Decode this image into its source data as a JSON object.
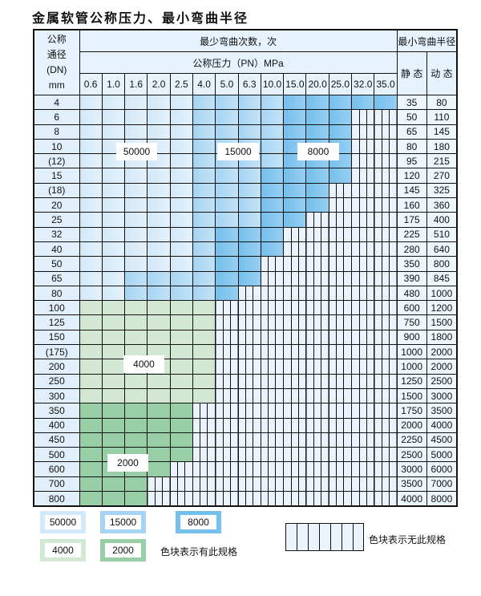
{
  "title": "金属软管公称压力、最小弯曲半径",
  "header": {
    "dn_label": "公称\n通径\n(DN)\nmm",
    "cycles_label": "最少弯曲次数，次",
    "pressure_label": "公称压力（PN）MPa",
    "radius_label": "最小弯曲半径",
    "static_label": "静 态",
    "dynamic_label": "动 态",
    "pressures": [
      "0.6",
      "1.0",
      "1.6",
      "2.0",
      "2.5",
      "4.0",
      "5.0",
      "6.3",
      "10.0",
      "15.0",
      "20.0",
      "25.0",
      "32.0",
      "35.0"
    ]
  },
  "category_colors": {
    "L": "#d3e8f8",
    "M": "#a6d4f2",
    "D": "#74bfec",
    "G": "#d2e8d3",
    "H": "#98cea6",
    "X": "#eaf3fb"
  },
  "category_values": {
    "L": "50000",
    "M": "15000",
    "D": "8000",
    "G": "4000",
    "H": "2000"
  },
  "rows": [
    {
      "dn": "4",
      "static": "35",
      "dynamic": "80",
      "cells": "LLLLLMMMMDDDDD"
    },
    {
      "dn": "6",
      "static": "50",
      "dynamic": "110",
      "cells": "LLLLLMMMMDDDXX"
    },
    {
      "dn": "8",
      "static": "65",
      "dynamic": "145",
      "cells": "LLLLLMMMMDDDXX"
    },
    {
      "dn": "10",
      "static": "80",
      "dynamic": "180",
      "cells": "LLLLLMMMMDDDXX"
    },
    {
      "dn": "(12)",
      "static": "95",
      "dynamic": "215",
      "cells": "LLLLLMMMMDDDXX"
    },
    {
      "dn": "15",
      "static": "120",
      "dynamic": "270",
      "cells": "LLLLLMMMDDDDXX"
    },
    {
      "dn": "(18)",
      "static": "145",
      "dynamic": "325",
      "cells": "LLLLLMMMDDDXXX"
    },
    {
      "dn": "20",
      "static": "160",
      "dynamic": "360",
      "cells": "LLLLLMMMDDDXXX"
    },
    {
      "dn": "25",
      "static": "175",
      "dynamic": "400",
      "cells": "LLLLLMMMDDXXXX"
    },
    {
      "dn": "32",
      "static": "225",
      "dynamic": "510",
      "cells": "LLLLLMDDDXXXXX"
    },
    {
      "dn": "40",
      "static": "280",
      "dynamic": "640",
      "cells": "LLLLLMDDDXXXXX"
    },
    {
      "dn": "50",
      "static": "350",
      "dynamic": "800",
      "cells": "LLLLLMDDXXXXXX"
    },
    {
      "dn": "65",
      "static": "390",
      "dynamic": "845",
      "cells": "LLMMMMDDXXXXXX"
    },
    {
      "dn": "80",
      "static": "480",
      "dynamic": "1000",
      "cells": "LLMMMMDXXXXXXX"
    },
    {
      "dn": "100",
      "static": "600",
      "dynamic": "1200",
      "cells": "GGGGGGXXXXXXXX"
    },
    {
      "dn": "125",
      "static": "750",
      "dynamic": "1500",
      "cells": "GGGGGGXXXXXXXX"
    },
    {
      "dn": "150",
      "static": "900",
      "dynamic": "1800",
      "cells": "GGGGGGXXXXXXXX"
    },
    {
      "dn": "(175)",
      "static": "1000",
      "dynamic": "2000",
      "cells": "GGGGGGXXXXXXXX"
    },
    {
      "dn": "200",
      "static": "1000",
      "dynamic": "2000",
      "cells": "GGGGGGXXXXXXXX"
    },
    {
      "dn": "250",
      "static": "1250",
      "dynamic": "2500",
      "cells": "GGGGGGXXXXXXXX"
    },
    {
      "dn": "300",
      "static": "1500",
      "dynamic": "3000",
      "cells": "GGGGGGXXXXXXXX"
    },
    {
      "dn": "350",
      "static": "1750",
      "dynamic": "3500",
      "cells": "HHHHHXXXXXXXXX"
    },
    {
      "dn": "400",
      "static": "2000",
      "dynamic": "4000",
      "cells": "HHHHHXXXXXXXXX"
    },
    {
      "dn": "450",
      "static": "2250",
      "dynamic": "4500",
      "cells": "HHHHHXXXXXXXXX"
    },
    {
      "dn": "500",
      "static": "2500",
      "dynamic": "5000",
      "cells": "HHHHHXXXXXXXXX"
    },
    {
      "dn": "600",
      "static": "3000",
      "dynamic": "6000",
      "cells": "HHHHXXXXXXXXXX"
    },
    {
      "dn": "700",
      "static": "3500",
      "dynamic": "7000",
      "cells": "HHHXXXXXXXXXXX"
    },
    {
      "dn": "800",
      "static": "4000",
      "dynamic": "8000",
      "cells": "HHHXXXXXXXXXXX"
    }
  ],
  "region_labels": {
    "l": "50000",
    "m": "15000",
    "d": "8000",
    "g": "4000",
    "h": "2000"
  },
  "legend": {
    "l": "50000",
    "m": "15000",
    "d": "8000",
    "g": "4000",
    "h": "2000",
    "has_spec_text": "色块表示有此规格",
    "no_spec_text": "色块表示无此规格"
  }
}
